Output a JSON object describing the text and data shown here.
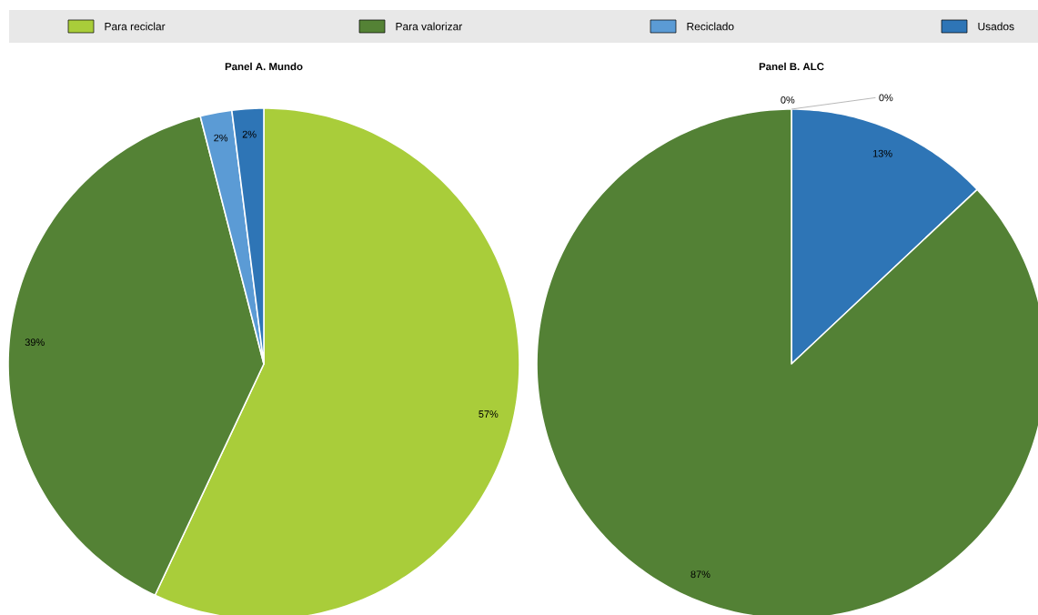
{
  "chart_data": [
    {
      "type": "pie",
      "title": "Panel A. Mundo",
      "legend": "top",
      "categories": [
        "Para reciclar",
        "Para valorizar",
        "Reciclado",
        "Usados"
      ],
      "values": [
        57,
        39,
        2,
        2
      ],
      "value_labels": [
        "57%",
        "39%",
        "2%",
        "2%"
      ],
      "colors": [
        "#a9cd3a",
        "#548235",
        "#5b9bd5",
        "#2e75b6"
      ]
    },
    {
      "type": "pie",
      "title": "Panel B. ALC",
      "categories": [
        null,
        null,
        null,
        null
      ],
      "values": [
        0,
        0,
        13,
        87
      ],
      "value_labels": [
        "0%",
        "0%",
        "13%",
        "87%"
      ],
      "colors": [
        "#5b9bd5",
        "#a9cd3a",
        "#2e75b6",
        "#538135"
      ]
    }
  ]
}
